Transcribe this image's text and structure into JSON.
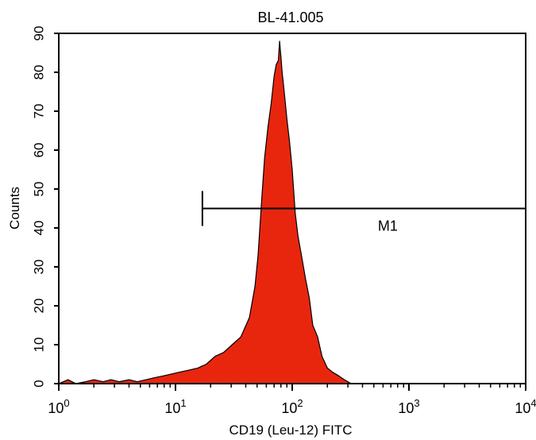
{
  "chart_data": {
    "type": "area",
    "title": "BL-41.005",
    "xlabel": "CD19 (Leu-12) FITC",
    "ylabel": "Counts",
    "x_scale": "log",
    "xlim": [
      1,
      10000
    ],
    "ylim": [
      0,
      90
    ],
    "x_ticks": [
      {
        "value": 1,
        "base": "10",
        "exp": "0"
      },
      {
        "value": 10,
        "base": "10",
        "exp": "1"
      },
      {
        "value": 100,
        "base": "10",
        "exp": "2"
      },
      {
        "value": 1000,
        "base": "10",
        "exp": "3"
      },
      {
        "value": 10000,
        "base": "10",
        "exp": "4"
      }
    ],
    "y_ticks": [
      "0",
      "10",
      "20",
      "30",
      "40",
      "50",
      "60",
      "70",
      "80",
      "90"
    ],
    "grid": false,
    "series": [
      {
        "fill_color": "#e8260e",
        "outline_color": "#000000",
        "x": [
          1.0,
          1.2,
          1.4,
          1.7,
          2.0,
          2.4,
          2.8,
          3.3,
          4.0,
          4.7,
          5.6,
          6.6,
          7.9,
          9.3,
          11.0,
          13.1,
          15.5,
          18.4,
          21.8,
          25.8,
          30.6,
          36.3,
          43.0,
          48.0,
          51.0,
          55.0,
          58.0,
          62.0,
          66.0,
          70.0,
          73.0,
          76.0,
          78.0,
          80.0,
          82.0,
          84.0,
          86.0,
          90.0,
          95.0,
          100.0,
          106.0,
          112.0,
          120.0,
          130.0,
          140.0,
          150.0,
          165.0,
          180.0,
          200.0,
          220.0,
          250.0,
          280.0,
          320.0,
          400.0,
          600.0,
          1000.0,
          10000.0
        ],
        "y": [
          0,
          1,
          0,
          0.5,
          1,
          0.5,
          1,
          0.5,
          1,
          0.5,
          1,
          1.5,
          2,
          2.5,
          3,
          3.5,
          4,
          5,
          7,
          8,
          10,
          12,
          17,
          25,
          33,
          48,
          58,
          66,
          72,
          79,
          82,
          83,
          88,
          84,
          80,
          77,
          74,
          68,
          62,
          55,
          44,
          38,
          33,
          27,
          22,
          15,
          12,
          7,
          4,
          3,
          2,
          1,
          0,
          0,
          0,
          0,
          0
        ]
      }
    ],
    "markers": [
      {
        "label": "M1",
        "x_start": 17,
        "x_end": 10000,
        "y_level": 45
      }
    ]
  }
}
